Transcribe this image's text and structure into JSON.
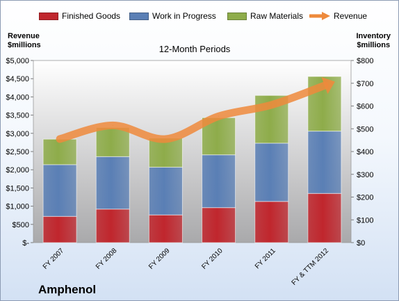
{
  "chart_data": {
    "type": "bar",
    "stacked": true,
    "title": "12-Month Periods",
    "categories": [
      "FY 2007",
      "FY 2008",
      "FY 2009",
      "FY 2010",
      "FY 2011",
      "FY & TTM 2012"
    ],
    "series": [
      {
        "name": "Finished Goods",
        "axis": "left",
        "color": "#c0262d",
        "values": [
          720,
          920,
          760,
          960,
          1130,
          1350
        ]
      },
      {
        "name": "Work in Progress",
        "axis": "left",
        "color": "#5a7fb5",
        "values": [
          1420,
          1440,
          1310,
          1450,
          1600,
          1710
        ]
      },
      {
        "name": "Raw Materials",
        "axis": "left",
        "color": "#8eac4a",
        "values": [
          700,
          800,
          800,
          1020,
          1310,
          1500
        ]
      }
    ],
    "line_series": {
      "name": "Revenue",
      "type": "arrow-line",
      "axis": "right",
      "color": "#ee8a3c",
      "values": [
        455,
        515,
        455,
        555,
        605,
        690
      ]
    },
    "yleft": {
      "label": "Revenue\n$millions",
      "lim": [
        0,
        5000
      ],
      "ticks": [
        "$-",
        "$500",
        "$1,000",
        "$1,500",
        "$2,000",
        "$2,500",
        "$3,000",
        "$3,500",
        "$4,000",
        "$4,500",
        "$5,000"
      ]
    },
    "yright": {
      "label": "Inventory\n$millions",
      "lim": [
        0,
        800
      ],
      "ticks": [
        "$0",
        "$100",
        "$200",
        "$300",
        "$400",
        "$500",
        "$600",
        "$700",
        "$800"
      ]
    },
    "legend": "top",
    "grid": false
  },
  "labels": {
    "left_axis_line1": "Revenue",
    "left_axis_line2": "$millions",
    "right_axis_line1": "Inventory",
    "right_axis_line2": "$millions",
    "company": "Amphenol"
  }
}
